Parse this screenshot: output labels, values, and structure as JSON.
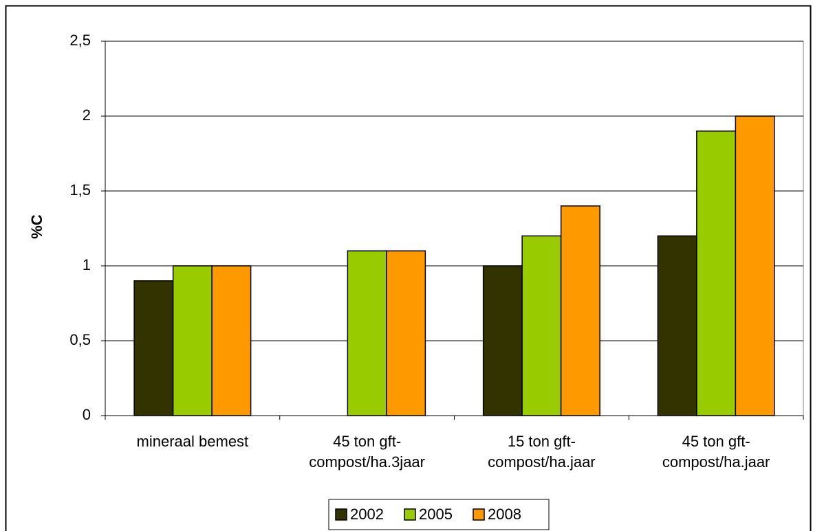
{
  "chart_data": {
    "type": "bar",
    "y_label": "%C",
    "categories": [
      "mineraal bemest",
      "45 ton gft-\ncompost/ha.3jaar",
      "15 ton gft-\ncompost/ha.jaar",
      "45 ton gft-\ncompost/ha.jaar"
    ],
    "series": [
      {
        "name": "2002",
        "color": "#333300",
        "values": [
          0.9,
          null,
          1.0,
          1.2
        ]
      },
      {
        "name": "2005",
        "color": "#99cc00",
        "values": [
          1.0,
          1.1,
          1.2,
          1.9
        ]
      },
      {
        "name": "2008",
        "color": "#ff9900",
        "values": [
          1.0,
          1.1,
          1.4,
          2.0
        ]
      }
    ],
    "ylim": [
      0,
      2.5
    ],
    "yticks": [
      0,
      {
        "value": 0.5,
        "label": "0,5"
      },
      1,
      {
        "value": 1.5,
        "label": "1,5"
      },
      2,
      {
        "value": 2.5,
        "label": "2,5"
      }
    ],
    "grid": true,
    "legend": "bottom"
  }
}
